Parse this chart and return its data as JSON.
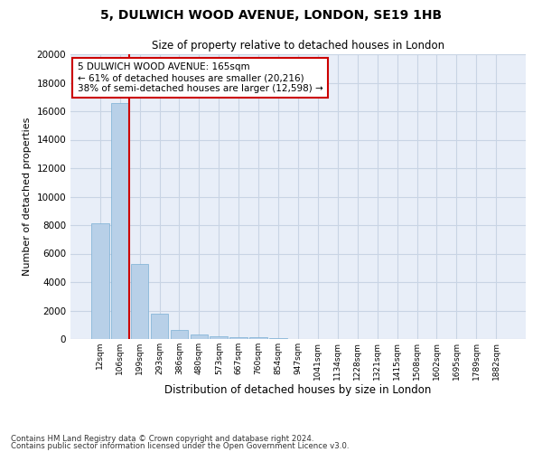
{
  "title1": "5, DULWICH WOOD AVENUE, LONDON, SE19 1HB",
  "title2": "Size of property relative to detached houses in London",
  "xlabel": "Distribution of detached houses by size in London",
  "ylabel": "Number of detached properties",
  "categories": [
    "12sqm",
    "106sqm",
    "199sqm",
    "293sqm",
    "386sqm",
    "480sqm",
    "573sqm",
    "667sqm",
    "760sqm",
    "854sqm",
    "947sqm",
    "1041sqm",
    "1134sqm",
    "1228sqm",
    "1321sqm",
    "1415sqm",
    "1508sqm",
    "1602sqm",
    "1695sqm",
    "1789sqm",
    "1882sqm"
  ],
  "values": [
    8100,
    16600,
    5300,
    1800,
    650,
    320,
    180,
    130,
    110,
    90,
    0,
    0,
    0,
    0,
    0,
    0,
    0,
    0,
    0,
    0,
    0
  ],
  "bar_color": "#b8d0e8",
  "bar_edge_color": "#7aafd4",
  "grid_color": "#c8d4e4",
  "background_color": "#e8eef8",
  "annotation_box_color": "#cc0000",
  "annotation_line_color": "#cc0000",
  "annotation_text": "5 DULWICH WOOD AVENUE: 165sqm\n← 61% of detached houses are smaller (20,216)\n38% of semi-detached houses are larger (12,598) →",
  "footer1": "Contains HM Land Registry data © Crown copyright and database right 2024.",
  "footer2": "Contains public sector information licensed under the Open Government Licence v3.0.",
  "ylim": [
    0,
    20000
  ],
  "yticks": [
    0,
    2000,
    4000,
    6000,
    8000,
    10000,
    12000,
    14000,
    16000,
    18000,
    20000
  ]
}
